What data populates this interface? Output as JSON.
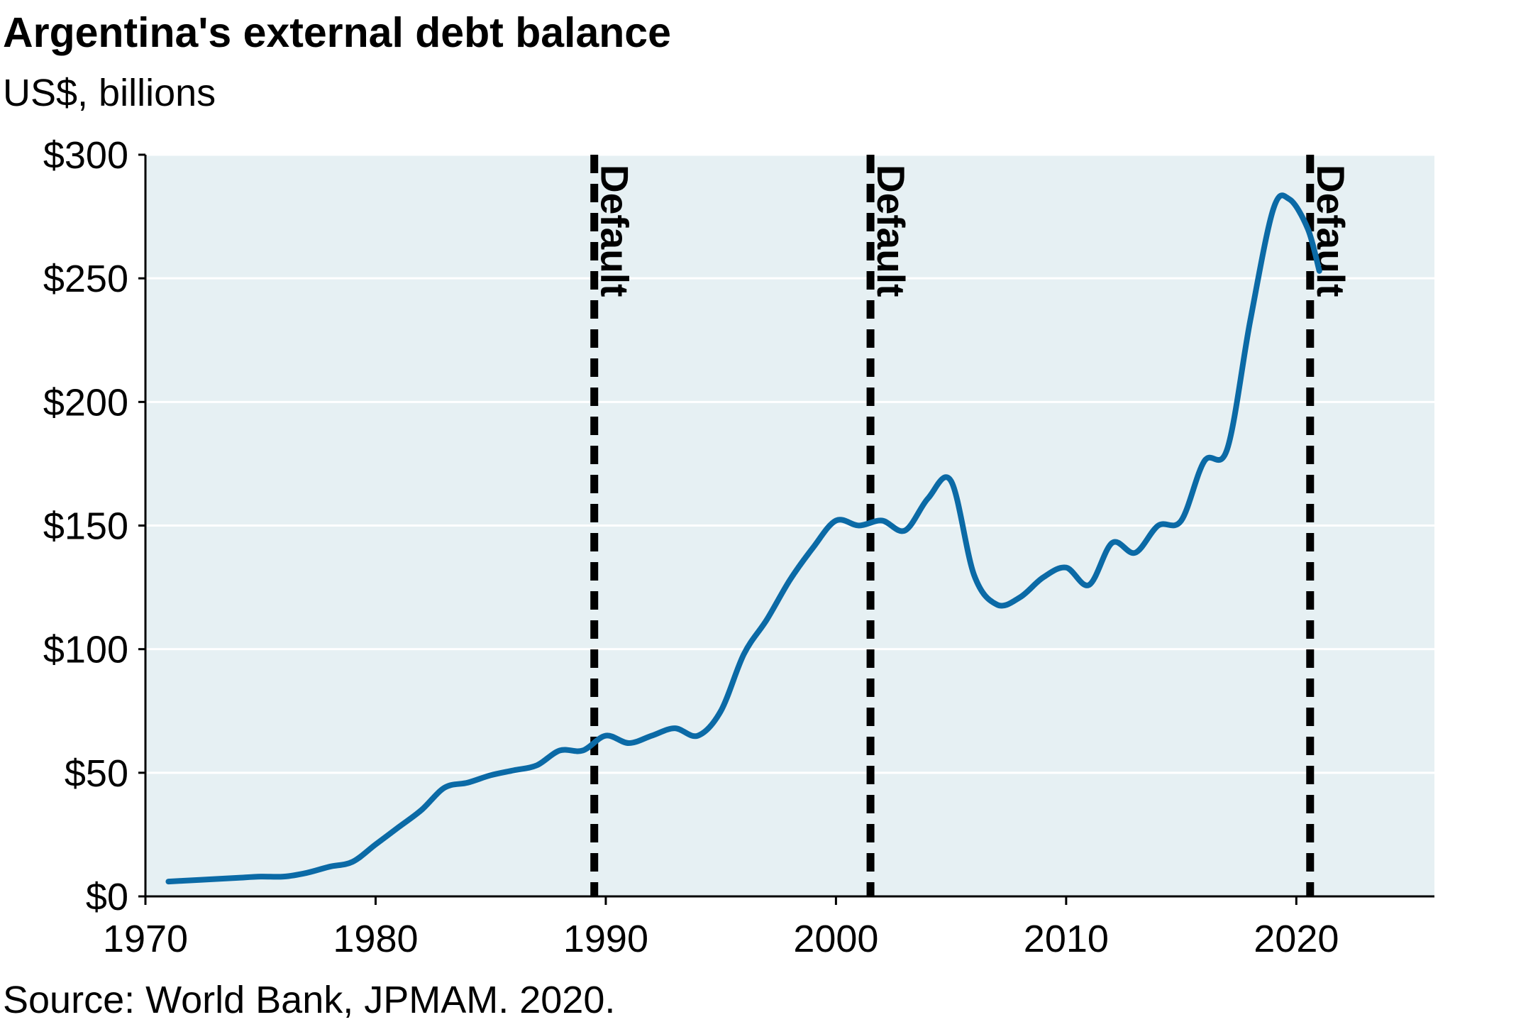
{
  "chart_data": {
    "type": "line",
    "title": "Argentina's external debt balance",
    "subtitle": "US$, billions",
    "source": "Source: World Bank, JPMAM. 2020.",
    "xlim": [
      1970,
      2026
    ],
    "ylim": [
      0,
      300
    ],
    "x_ticks": [
      1970,
      1980,
      1990,
      2000,
      2010,
      2020
    ],
    "y_ticks": [
      {
        "value": 0,
        "label": "$0"
      },
      {
        "value": 50,
        "label": "$50"
      },
      {
        "value": 100,
        "label": "$100"
      },
      {
        "value": 150,
        "label": "$150"
      },
      {
        "value": 200,
        "label": "$200"
      },
      {
        "value": 250,
        "label": "$250"
      },
      {
        "value": 300,
        "label": "$300"
      }
    ],
    "grid": "horizontal",
    "series": [
      {
        "color": "#0b6aa6",
        "points": [
          [
            1971,
            6
          ],
          [
            1972,
            6.5
          ],
          [
            1973,
            7
          ],
          [
            1974,
            7.5
          ],
          [
            1975,
            8
          ],
          [
            1976,
            8
          ],
          [
            1977,
            9.5
          ],
          [
            1978,
            12
          ],
          [
            1979,
            14
          ],
          [
            1980,
            21
          ],
          [
            1981,
            28
          ],
          [
            1982,
            35
          ],
          [
            1983,
            44
          ],
          [
            1984,
            46
          ],
          [
            1985,
            49
          ],
          [
            1986,
            51
          ],
          [
            1987,
            53
          ],
          [
            1988,
            59
          ],
          [
            1989,
            59
          ],
          [
            1990,
            65
          ],
          [
            1991,
            62
          ],
          [
            1992,
            65
          ],
          [
            1993,
            68
          ],
          [
            1994,
            65
          ],
          [
            1995,
            75
          ],
          [
            1996,
            98
          ],
          [
            1997,
            112
          ],
          [
            1998,
            128
          ],
          [
            1999,
            141
          ],
          [
            2000,
            152
          ],
          [
            2001,
            150
          ],
          [
            2002,
            152
          ],
          [
            2003,
            148
          ],
          [
            2004,
            161
          ],
          [
            2005,
            168
          ],
          [
            2006,
            130
          ],
          [
            2007,
            118
          ],
          [
            2008,
            121
          ],
          [
            2009,
            129
          ],
          [
            2010,
            133
          ],
          [
            2011,
            126
          ],
          [
            2012,
            143
          ],
          [
            2013,
            139
          ],
          [
            2014,
            150
          ],
          [
            2015,
            152
          ],
          [
            2016,
            176
          ],
          [
            2017,
            181
          ],
          [
            2018,
            233
          ],
          [
            2019,
            278
          ],
          [
            2019.7,
            282
          ],
          [
            2020.5,
            270
          ],
          [
            2021,
            253
          ]
        ]
      }
    ],
    "annotations": [
      {
        "x": 1989.5,
        "label": "Default"
      },
      {
        "x": 2001.5,
        "label": "Default"
      },
      {
        "x": 2020.6,
        "label": "Default"
      }
    ]
  }
}
